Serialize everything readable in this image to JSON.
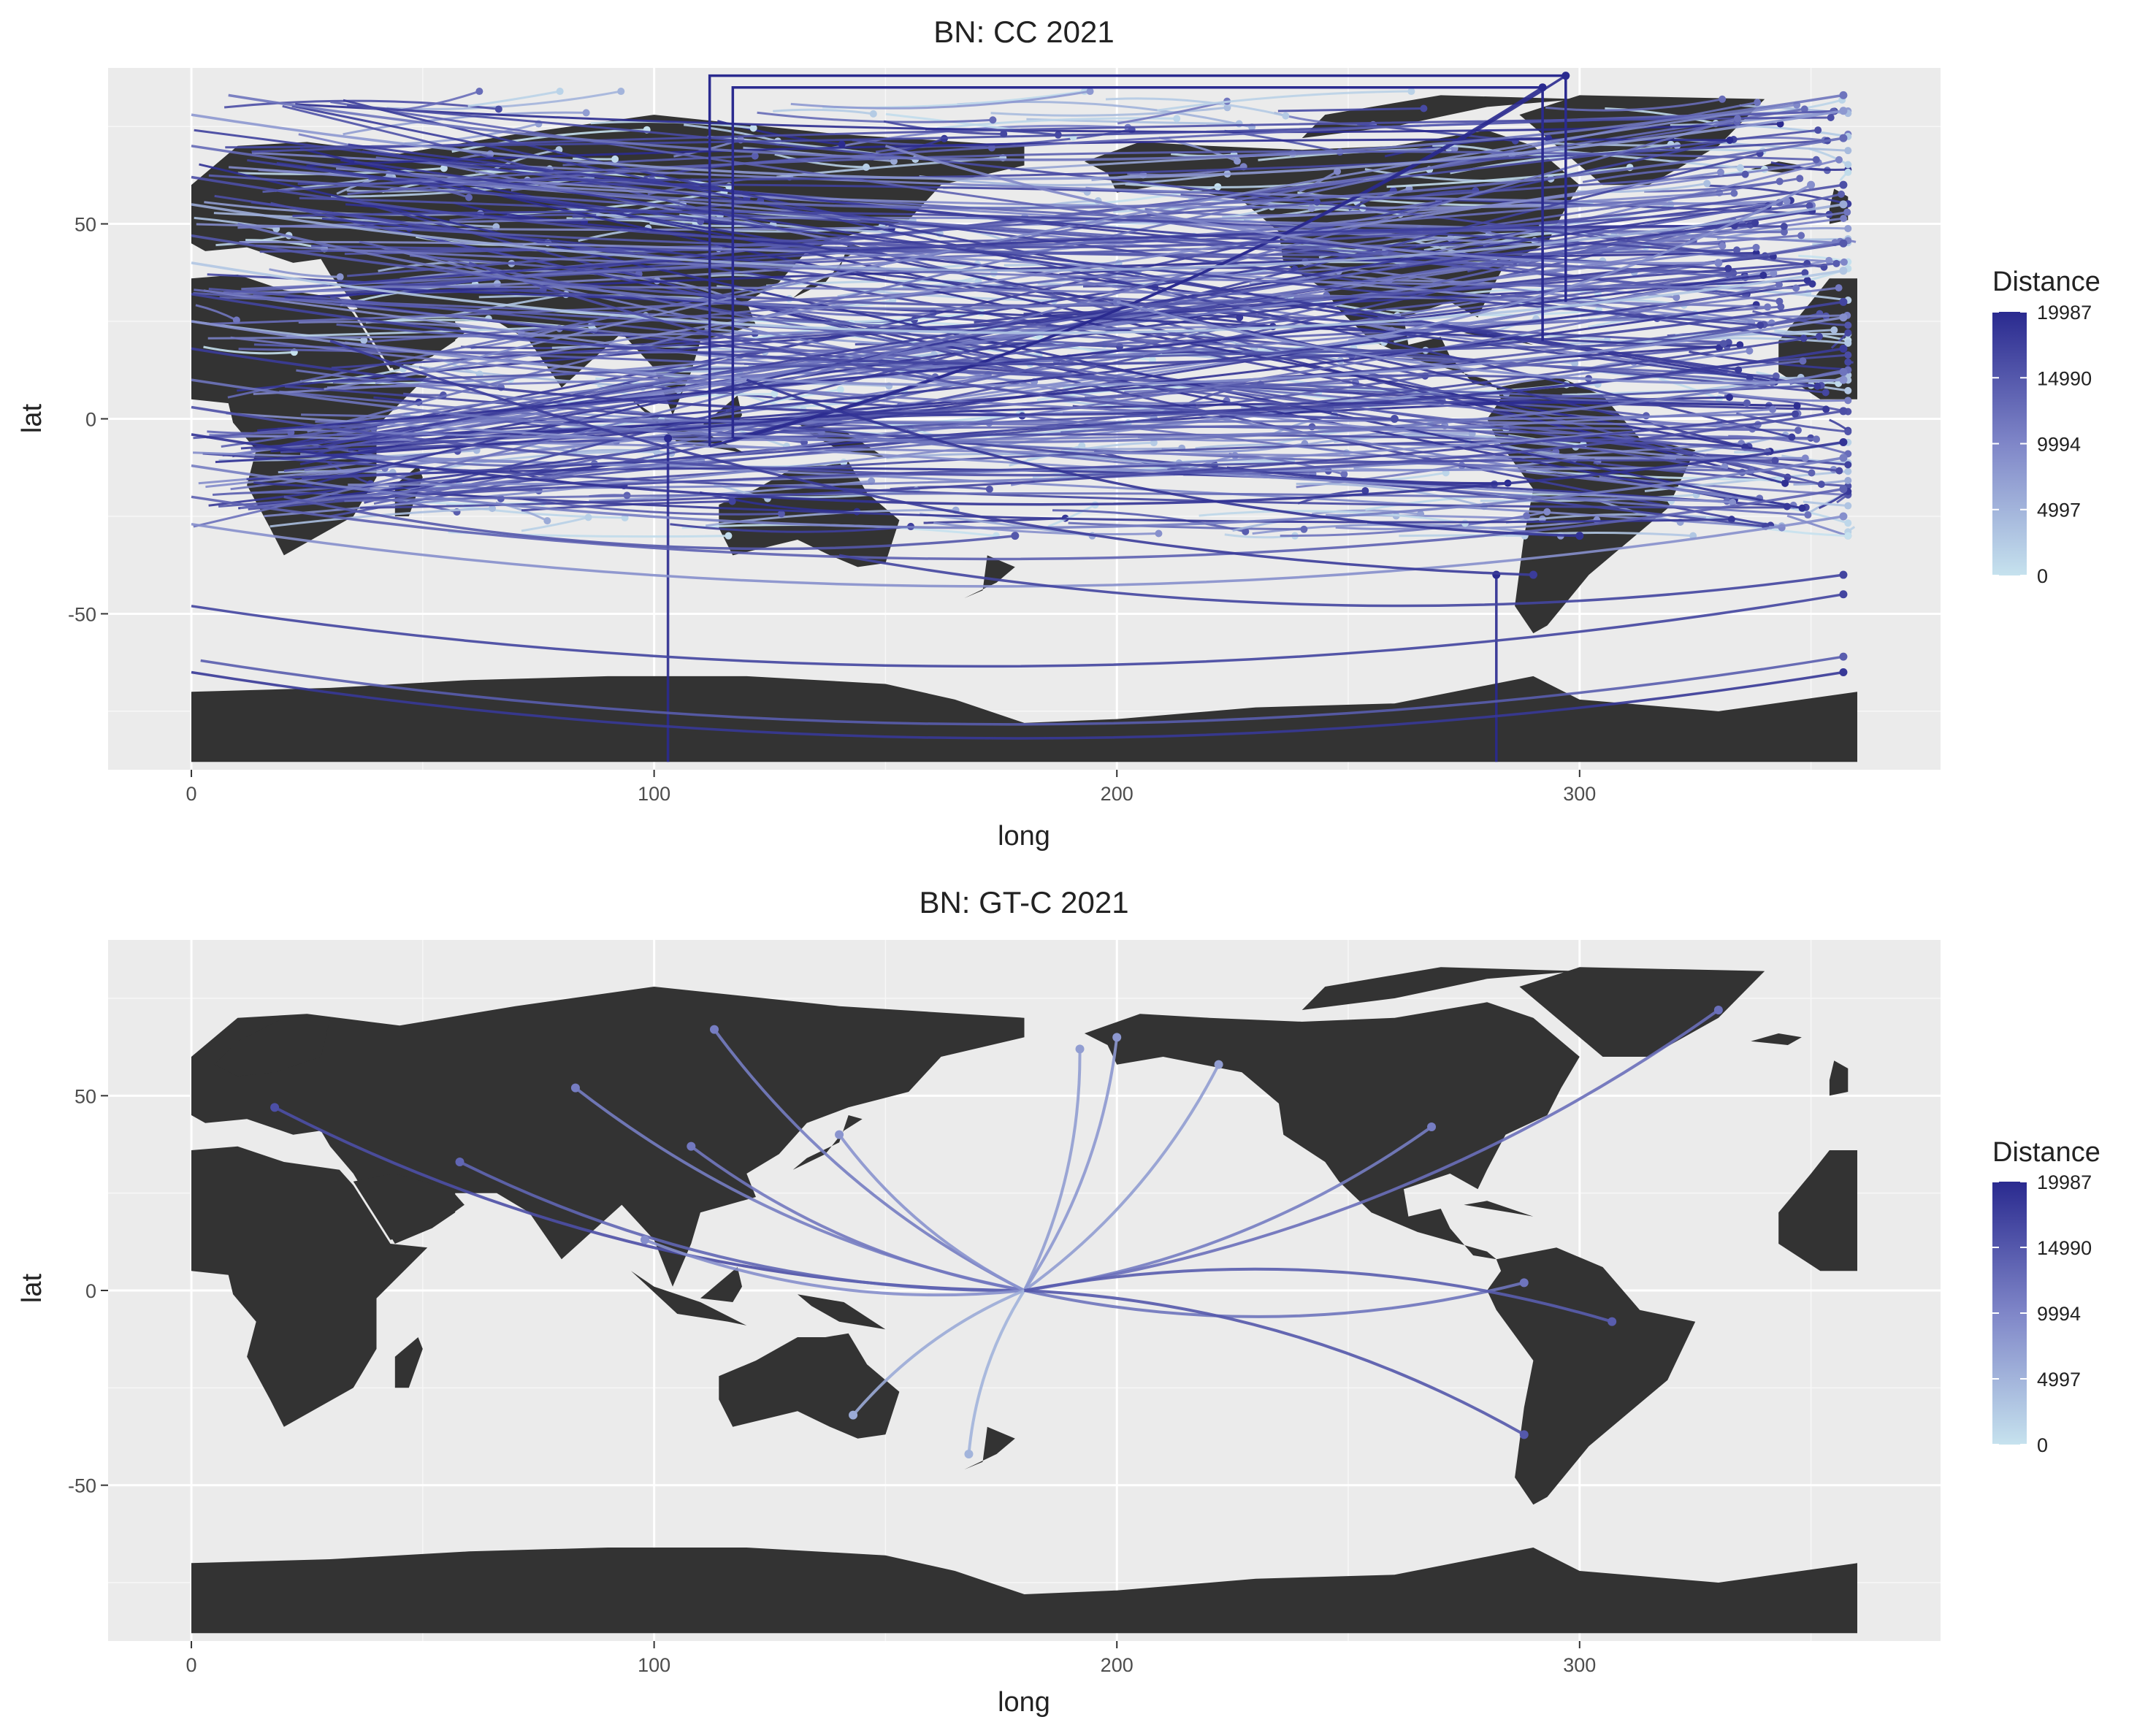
{
  "panels": [
    {
      "id": "cc",
      "title": "BN: CC 2021",
      "xlabel": "long",
      "ylabel": "lat",
      "xlim": [
        -18,
        378
      ],
      "ylim": [
        -90,
        90
      ],
      "x_ticks": [
        0,
        100,
        200,
        300
      ],
      "x_tick_labels": [
        "0",
        "100",
        "200",
        "300"
      ],
      "y_ticks": [
        -50,
        0,
        50
      ],
      "y_tick_labels": [
        "-50",
        "0",
        "50"
      ],
      "legend": {
        "title": "Distance",
        "breaks": [
          19987,
          14990,
          9994,
          4997,
          0
        ],
        "break_labels": [
          "19987",
          "14990",
          "9994",
          "4997",
          "0"
        ],
        "color_low": "#c6e2ee",
        "color_high": "#2a2a8f"
      }
    },
    {
      "id": "gtc",
      "title": "BN: GT-C 2021",
      "xlabel": "long",
      "ylabel": "lat",
      "xlim": [
        -18,
        378
      ],
      "ylim": [
        -90,
        90
      ],
      "x_ticks": [
        0,
        100,
        200,
        300
      ],
      "x_tick_labels": [
        "0",
        "100",
        "200",
        "300"
      ],
      "y_ticks": [
        -50,
        0,
        50
      ],
      "y_tick_labels": [
        "-50",
        "0",
        "50"
      ],
      "legend": {
        "title": "Distance",
        "breaks": [
          19987,
          14990,
          9994,
          4997,
          0
        ],
        "break_labels": [
          "19987",
          "14990",
          "9994",
          "4997",
          "0"
        ],
        "color_low": "#c6e2ee",
        "color_high": "#2a2a8f"
      }
    }
  ],
  "chart_data": [
    {
      "type": "map-flows",
      "panel": "BN: CC 2021",
      "land_color": "#333333",
      "panel_background": "#ebebeb",
      "grid": true,
      "note_dense_flows": "many hundreds of curved flow lines across the whole map; rendered approximately",
      "flows": [
        {
          "from": [
            112,
            -7
          ],
          "to": [
            297,
            88
          ],
          "distance": 19987
        },
        {
          "from": [
            117,
            -5
          ],
          "to": [
            292,
            85
          ],
          "distance": 19987
        },
        {
          "from": [
            103,
            -88
          ],
          "to": [
            103,
            -5
          ],
          "distance": 19987
        },
        {
          "from": [
            282,
            -88
          ],
          "to": [
            282,
            -40
          ],
          "distance": 19987
        },
        {
          "from": [
            0,
            -65
          ],
          "to": [
            357,
            -65
          ],
          "distance": 18500
        },
        {
          "from": [
            0,
            -48
          ],
          "to": [
            357,
            -45
          ],
          "distance": 17000
        },
        {
          "from": [
            2,
            -62
          ],
          "to": [
            357,
            -61
          ],
          "distance": 14500
        },
        {
          "from": [
            8,
            83
          ],
          "to": [
            357,
            83
          ],
          "distance": 12000
        },
        {
          "from": [
            0,
            78
          ],
          "to": [
            357,
            79
          ],
          "distance": 8000
        },
        {
          "from": [
            0,
            70
          ],
          "to": [
            357,
            72
          ],
          "distance": 13000
        },
        {
          "from": [
            0,
            62
          ],
          "to": [
            357,
            60
          ],
          "distance": 16000
        },
        {
          "from": [
            0,
            55
          ],
          "to": [
            357,
            55
          ],
          "distance": 6000
        },
        {
          "from": [
            0,
            47
          ],
          "to": [
            357,
            45
          ],
          "distance": 15000
        },
        {
          "from": [
            0,
            40
          ],
          "to": [
            357,
            38
          ],
          "distance": 3000
        },
        {
          "from": [
            0,
            32
          ],
          "to": [
            357,
            30
          ],
          "distance": 17000
        },
        {
          "from": [
            0,
            25
          ],
          "to": [
            357,
            26
          ],
          "distance": 9000
        },
        {
          "from": [
            0,
            18
          ],
          "to": [
            357,
            18
          ],
          "distance": 18000
        },
        {
          "from": [
            0,
            10
          ],
          "to": [
            357,
            12
          ],
          "distance": 12000
        },
        {
          "from": [
            0,
            3
          ],
          "to": [
            357,
            2
          ],
          "distance": 16000
        },
        {
          "from": [
            0,
            -4
          ],
          "to": [
            357,
            -6
          ],
          "distance": 19000
        },
        {
          "from": [
            0,
            -12
          ],
          "to": [
            357,
            -10
          ],
          "distance": 11000
        },
        {
          "from": [
            0,
            -20
          ],
          "to": [
            357,
            -18
          ],
          "distance": 14000
        },
        {
          "from": [
            0,
            -27
          ],
          "to": [
            357,
            -25
          ],
          "distance": 9000
        },
        {
          "from": [
            20,
            -20
          ],
          "to": [
            178,
            -30
          ],
          "distance": 15000
        },
        {
          "from": [
            30,
            20
          ],
          "to": [
            290,
            -40
          ],
          "distance": 18000
        },
        {
          "from": [
            140,
            -35
          ],
          "to": [
            357,
            -40
          ],
          "distance": 17000
        },
        {
          "from": [
            120,
            10
          ],
          "to": [
            300,
            -30
          ],
          "distance": 19000
        },
        {
          "from": [
            60,
            40
          ],
          "to": [
            260,
            0
          ],
          "distance": 16000
        },
        {
          "from": [
            10,
            50
          ],
          "to": [
            200,
            30
          ],
          "distance": 12000
        },
        {
          "from": [
            250,
            20
          ],
          "to": [
            350,
            60
          ],
          "distance": 9000
        },
        {
          "from": [
            150,
            70
          ],
          "to": [
            330,
            40
          ],
          "distance": 10000
        },
        {
          "from": [
            200,
            30
          ],
          "to": [
            357,
            10
          ],
          "distance": 9000
        }
      ]
    },
    {
      "type": "map-flows",
      "panel": "BN: GT-C 2021",
      "land_color": "#333333",
      "panel_background": "#ebebeb",
      "grid": true,
      "origin": [
        180,
        0
      ],
      "flows": [
        {
          "from": [
            180,
            0
          ],
          "to": [
            18,
            47
          ],
          "distance": 16000
        },
        {
          "from": [
            180,
            0
          ],
          "to": [
            113,
            67
          ],
          "distance": 11000
        },
        {
          "from": [
            180,
            0
          ],
          "to": [
            83,
            52
          ],
          "distance": 11000
        },
        {
          "from": [
            180,
            0
          ],
          "to": [
            58,
            33
          ],
          "distance": 13500
        },
        {
          "from": [
            180,
            0
          ],
          "to": [
            108,
            37
          ],
          "distance": 11500
        },
        {
          "from": [
            180,
            0
          ],
          "to": [
            140,
            40
          ],
          "distance": 8500
        },
        {
          "from": [
            180,
            0
          ],
          "to": [
            98,
            13
          ],
          "distance": 9000
        },
        {
          "from": [
            180,
            0
          ],
          "to": [
            143,
            -32
          ],
          "distance": 6000
        },
        {
          "from": [
            180,
            0
          ],
          "to": [
            168,
            -42
          ],
          "distance": 5000
        },
        {
          "from": [
            180,
            0
          ],
          "to": [
            192,
            62
          ],
          "distance": 7500
        },
        {
          "from": [
            180,
            0
          ],
          "to": [
            200,
            65
          ],
          "distance": 8000
        },
        {
          "from": [
            180,
            0
          ],
          "to": [
            222,
            58
          ],
          "distance": 7500
        },
        {
          "from": [
            180,
            0
          ],
          "to": [
            268,
            42
          ],
          "distance": 11000
        },
        {
          "from": [
            180,
            0
          ],
          "to": [
            330,
            72
          ],
          "distance": 12500
        },
        {
          "from": [
            180,
            0
          ],
          "to": [
            288,
            2
          ],
          "distance": 12000
        },
        {
          "from": [
            180,
            0
          ],
          "to": [
            307,
            -8
          ],
          "distance": 14500
        },
        {
          "from": [
            180,
            0
          ],
          "to": [
            288,
            -37
          ],
          "distance": 15000
        }
      ]
    }
  ]
}
